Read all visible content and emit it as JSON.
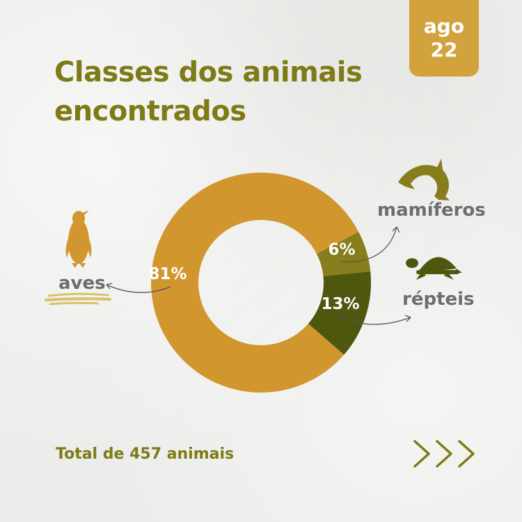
{
  "date_badge": {
    "month": "ago",
    "day": "22"
  },
  "title": {
    "line1": "Classes dos animais",
    "line2": "encontrados"
  },
  "total_text": "Total de 457 animais",
  "colors": {
    "aves": "#d2962e",
    "mamiferos": "#877d1d",
    "repteis": "#4f560e",
    "title": "#7e7a16",
    "label": "#6d6d6d",
    "badge": "#d2a33c"
  },
  "icons": {
    "aves": "penguin-icon",
    "mamiferos": "dolphin-icon",
    "repteis": "turtle-icon",
    "next": "triple-chevron-right-icon"
  },
  "chart_data": {
    "type": "pie",
    "donut": true,
    "title": "Classes dos animais encontrados",
    "total": 457,
    "slices": [
      {
        "label": "aves",
        "value": 81,
        "value_label": "81%"
      },
      {
        "label": "mamíferos",
        "value": 6,
        "value_label": "6%"
      },
      {
        "label": "répteis",
        "value": 13,
        "value_label": "13%"
      }
    ]
  }
}
